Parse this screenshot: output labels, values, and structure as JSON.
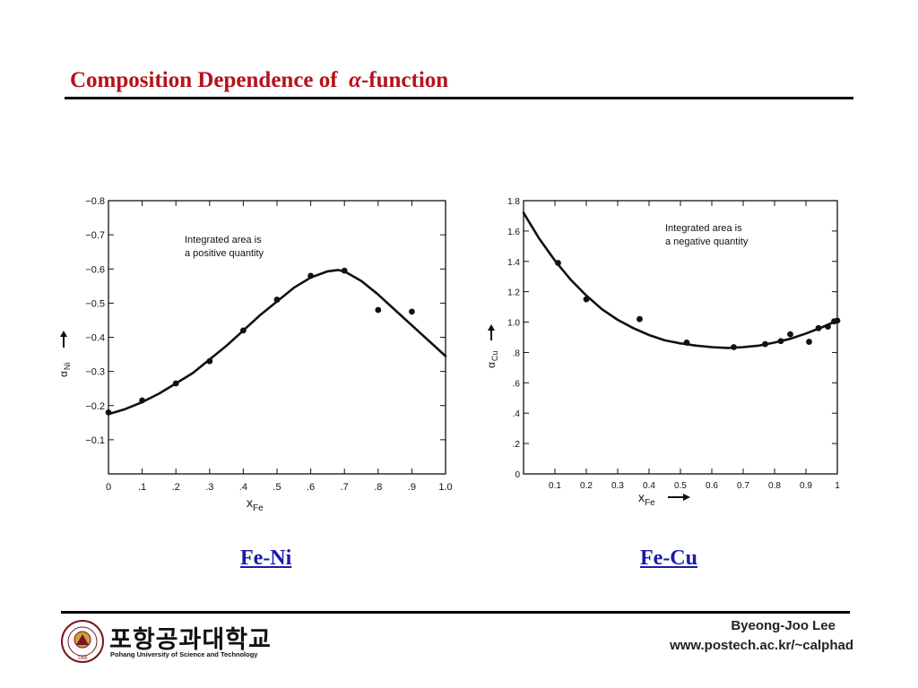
{
  "slide": {
    "title_prefix": "Composition Dependence of",
    "title_symbol": "α",
    "title_suffix": "-function",
    "caption_left": "Fe-Ni",
    "caption_right": "Fe-Cu",
    "author": "Byeong-Joo Lee",
    "url": "www.postech.ac.kr/~calphad"
  },
  "logo": {
    "korean_name": "포항공과대학교",
    "english_name": "Pohang University of Science and Technology",
    "emblem_icon": "university-seal-icon"
  },
  "chart_data": [
    {
      "type": "scatter",
      "name": "Fe-Ni",
      "xlim": [
        0,
        1.0
      ],
      "ylim": [
        0,
        -0.8
      ],
      "x_ticks": [
        0,
        0.1,
        0.2,
        0.3,
        0.4,
        0.5,
        0.6,
        0.7,
        0.8,
        0.9,
        1.0
      ],
      "x_tick_labels": [
        "0",
        ".1",
        ".2",
        ".3",
        ".4",
        ".5",
        ".6",
        ".7",
        ".8",
        ".9",
        "1.0"
      ],
      "y_ticks": [
        -0.1,
        -0.2,
        -0.3,
        -0.4,
        -0.5,
        -0.6,
        -0.7,
        -0.8
      ],
      "y_tick_labels": [
        "−0.1",
        "−0.2",
        "−0.3",
        "−0.4",
        "−0.5",
        "−0.6",
        "−0.7",
        "−0.8"
      ],
      "xlabel": "x",
      "xlabel_sub": "Fe",
      "ylabel": "α",
      "ylabel_sub": "Ni",
      "annotation": [
        "Integrated area is",
        "a positive quantity"
      ],
      "points": [
        {
          "x": 0.0,
          "y": -0.18
        },
        {
          "x": 0.1,
          "y": -0.215
        },
        {
          "x": 0.2,
          "y": -0.265
        },
        {
          "x": 0.3,
          "y": -0.33
        },
        {
          "x": 0.4,
          "y": -0.42
        },
        {
          "x": 0.5,
          "y": -0.51
        },
        {
          "x": 0.6,
          "y": -0.58
        },
        {
          "x": 0.7,
          "y": -0.595
        },
        {
          "x": 0.8,
          "y": -0.48
        },
        {
          "x": 0.9,
          "y": -0.475
        }
      ],
      "curve": [
        {
          "x": 0.0,
          "y": -0.175
        },
        {
          "x": 0.05,
          "y": -0.19
        },
        {
          "x": 0.1,
          "y": -0.21
        },
        {
          "x": 0.15,
          "y": -0.235
        },
        {
          "x": 0.2,
          "y": -0.265
        },
        {
          "x": 0.25,
          "y": -0.295
        },
        {
          "x": 0.3,
          "y": -0.335
        },
        {
          "x": 0.35,
          "y": -0.375
        },
        {
          "x": 0.4,
          "y": -0.42
        },
        {
          "x": 0.45,
          "y": -0.465
        },
        {
          "x": 0.5,
          "y": -0.505
        },
        {
          "x": 0.55,
          "y": -0.545
        },
        {
          "x": 0.6,
          "y": -0.575
        },
        {
          "x": 0.65,
          "y": -0.593
        },
        {
          "x": 0.68,
          "y": -0.597
        },
        {
          "x": 0.7,
          "y": -0.593
        },
        {
          "x": 0.75,
          "y": -0.565
        },
        {
          "x": 0.8,
          "y": -0.525
        },
        {
          "x": 0.85,
          "y": -0.48
        },
        {
          "x": 0.9,
          "y": -0.435
        },
        {
          "x": 0.95,
          "y": -0.39
        },
        {
          "x": 1.0,
          "y": -0.345
        }
      ]
    },
    {
      "type": "scatter",
      "name": "Fe-Cu",
      "xlim": [
        0,
        1.0
      ],
      "ylim": [
        0,
        1.8
      ],
      "x_ticks": [
        0.1,
        0.2,
        0.3,
        0.4,
        0.5,
        0.6,
        0.7,
        0.8,
        0.9,
        1.0
      ],
      "x_tick_labels": [
        "0.1",
        "0.2",
        "0.3",
        "0.4",
        "0.5",
        "0.6",
        "0.7",
        "0.8",
        "0.9",
        "1"
      ],
      "y_ticks": [
        0,
        0.2,
        0.4,
        0.6,
        0.8,
        1.0,
        1.2,
        1.4,
        1.6,
        1.8
      ],
      "y_tick_labels": [
        "0",
        ".2",
        ".4",
        ".6",
        ".8",
        "1.0",
        "1.2",
        "1.4",
        "1.6",
        "1.8"
      ],
      "xlabel": "x",
      "xlabel_sub": "Fe",
      "ylabel": "α",
      "ylabel_sub": "Cu",
      "annotation": [
        "Integrated area is",
        "a negative quantity"
      ],
      "points": [
        {
          "x": 0.11,
          "y": 1.39
        },
        {
          "x": 0.2,
          "y": 1.15
        },
        {
          "x": 0.37,
          "y": 1.02
        },
        {
          "x": 0.52,
          "y": 0.865
        },
        {
          "x": 0.67,
          "y": 0.835
        },
        {
          "x": 0.77,
          "y": 0.855
        },
        {
          "x": 0.82,
          "y": 0.875
        },
        {
          "x": 0.85,
          "y": 0.92
        },
        {
          "x": 0.91,
          "y": 0.87
        },
        {
          "x": 0.94,
          "y": 0.96
        },
        {
          "x": 0.97,
          "y": 0.97
        },
        {
          "x": 0.99,
          "y": 1.005
        },
        {
          "x": 1.0,
          "y": 1.01
        }
      ],
      "curve": [
        {
          "x": 0.0,
          "y": 1.72
        },
        {
          "x": 0.05,
          "y": 1.55
        },
        {
          "x": 0.1,
          "y": 1.405
        },
        {
          "x": 0.15,
          "y": 1.28
        },
        {
          "x": 0.2,
          "y": 1.175
        },
        {
          "x": 0.25,
          "y": 1.085
        },
        {
          "x": 0.3,
          "y": 1.015
        },
        {
          "x": 0.35,
          "y": 0.96
        },
        {
          "x": 0.4,
          "y": 0.915
        },
        {
          "x": 0.45,
          "y": 0.88
        },
        {
          "x": 0.5,
          "y": 0.86
        },
        {
          "x": 0.55,
          "y": 0.845
        },
        {
          "x": 0.6,
          "y": 0.835
        },
        {
          "x": 0.65,
          "y": 0.83
        },
        {
          "x": 0.7,
          "y": 0.835
        },
        {
          "x": 0.75,
          "y": 0.845
        },
        {
          "x": 0.8,
          "y": 0.865
        },
        {
          "x": 0.85,
          "y": 0.89
        },
        {
          "x": 0.9,
          "y": 0.925
        },
        {
          "x": 0.95,
          "y": 0.965
        },
        {
          "x": 1.0,
          "y": 1.01
        }
      ]
    }
  ],
  "colors": {
    "title": "#b5121b",
    "caption": "#1a1aa8",
    "rule": "#000000",
    "seal": "#7a1520"
  }
}
